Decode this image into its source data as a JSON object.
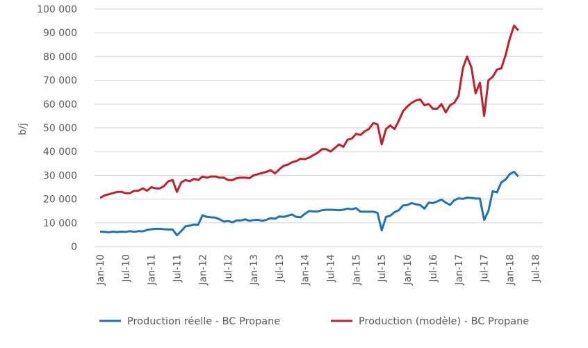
{
  "chart_data": {
    "type": "line",
    "title": "",
    "xlabel": "",
    "ylabel": "b/j",
    "ylim": [
      0,
      100000
    ],
    "yticks": [
      0,
      10000,
      20000,
      30000,
      40000,
      50000,
      60000,
      70000,
      80000,
      90000,
      100000
    ],
    "ytick_labels": [
      "0",
      "10 000",
      "20 000",
      "30 000",
      "40 000",
      "50 000",
      "60 000",
      "70 000",
      "80 000",
      "90 000",
      "100 000"
    ],
    "xtick_labels": [
      "Jan-10",
      "Jul-10",
      "Jan-11",
      "Jul-11",
      "Jan-12",
      "Jul-12",
      "Jan-13",
      "Jul-13",
      "Jan-14",
      "Jul-14",
      "Jan-15",
      "Jul-15",
      "Jan-16",
      "Jul-16",
      "Jan-17",
      "Jul-17",
      "Jan-18",
      "Jul-18"
    ],
    "x_start": "Jan-10",
    "x_frequency": "monthly",
    "grid": true,
    "legend_position": "bottom",
    "series": [
      {
        "name": "Production réelle - BC Propane",
        "color": "#1f72b8",
        "values": [
          6300,
          6200,
          6000,
          6300,
          6100,
          6300,
          6200,
          6500,
          6200,
          6500,
          6400,
          7000,
          7300,
          7500,
          7500,
          7300,
          7200,
          7200,
          4800,
          6500,
          8500,
          8800,
          9300,
          9200,
          13200,
          12500,
          12300,
          12200,
          11500,
          10500,
          10800,
          10200,
          11000,
          11000,
          11500,
          10800,
          11200,
          11300,
          10800,
          11300,
          12000,
          11700,
          12700,
          12500,
          13000,
          13500,
          12500,
          12300,
          13800,
          15000,
          14800,
          14800,
          15300,
          15500,
          15500,
          15400,
          15300,
          15500,
          16000,
          15700,
          16200,
          14700,
          14700,
          14700,
          14700,
          14200,
          6800,
          12500,
          13000,
          14500,
          15300,
          17300,
          17500,
          18300,
          17800,
          17500,
          16000,
          18500,
          18300,
          19000,
          19800,
          18500,
          17500,
          19500,
          20300,
          20100,
          20600,
          20500,
          20200,
          20200,
          11200,
          15000,
          23300,
          22800,
          27000,
          28200,
          30500,
          31500,
          29500
        ]
      },
      {
        "name": "Production (modèle) - BC Propane",
        "color": "#c0202b",
        "values": [
          20500,
          21500,
          22000,
          22500,
          23000,
          23000,
          22500,
          22500,
          23500,
          23500,
          24500,
          23500,
          25000,
          24500,
          24500,
          25500,
          27500,
          28000,
          23000,
          27000,
          28000,
          27500,
          28500,
          28000,
          29500,
          29000,
          29500,
          29500,
          29000,
          29000,
          28000,
          28000,
          28800,
          29000,
          29000,
          28800,
          30000,
          30500,
          31000,
          31500,
          32200,
          30800,
          32500,
          34000,
          34500,
          35500,
          36000,
          37000,
          36800,
          37500,
          38500,
          39500,
          41000,
          41000,
          40000,
          41500,
          43000,
          42000,
          45000,
          45500,
          47500,
          47000,
          48500,
          49500,
          52000,
          51500,
          43000,
          49500,
          51000,
          49500,
          53000,
          57000,
          59000,
          60500,
          61500,
          62000,
          59500,
          60000,
          58000,
          58000,
          60000,
          56500,
          59500,
          60500,
          63500,
          75000,
          80000,
          75500,
          64500,
          69000,
          55000,
          70000,
          71500,
          74500,
          75000,
          80500,
          87500,
          93000,
          91000
        ]
      }
    ]
  }
}
